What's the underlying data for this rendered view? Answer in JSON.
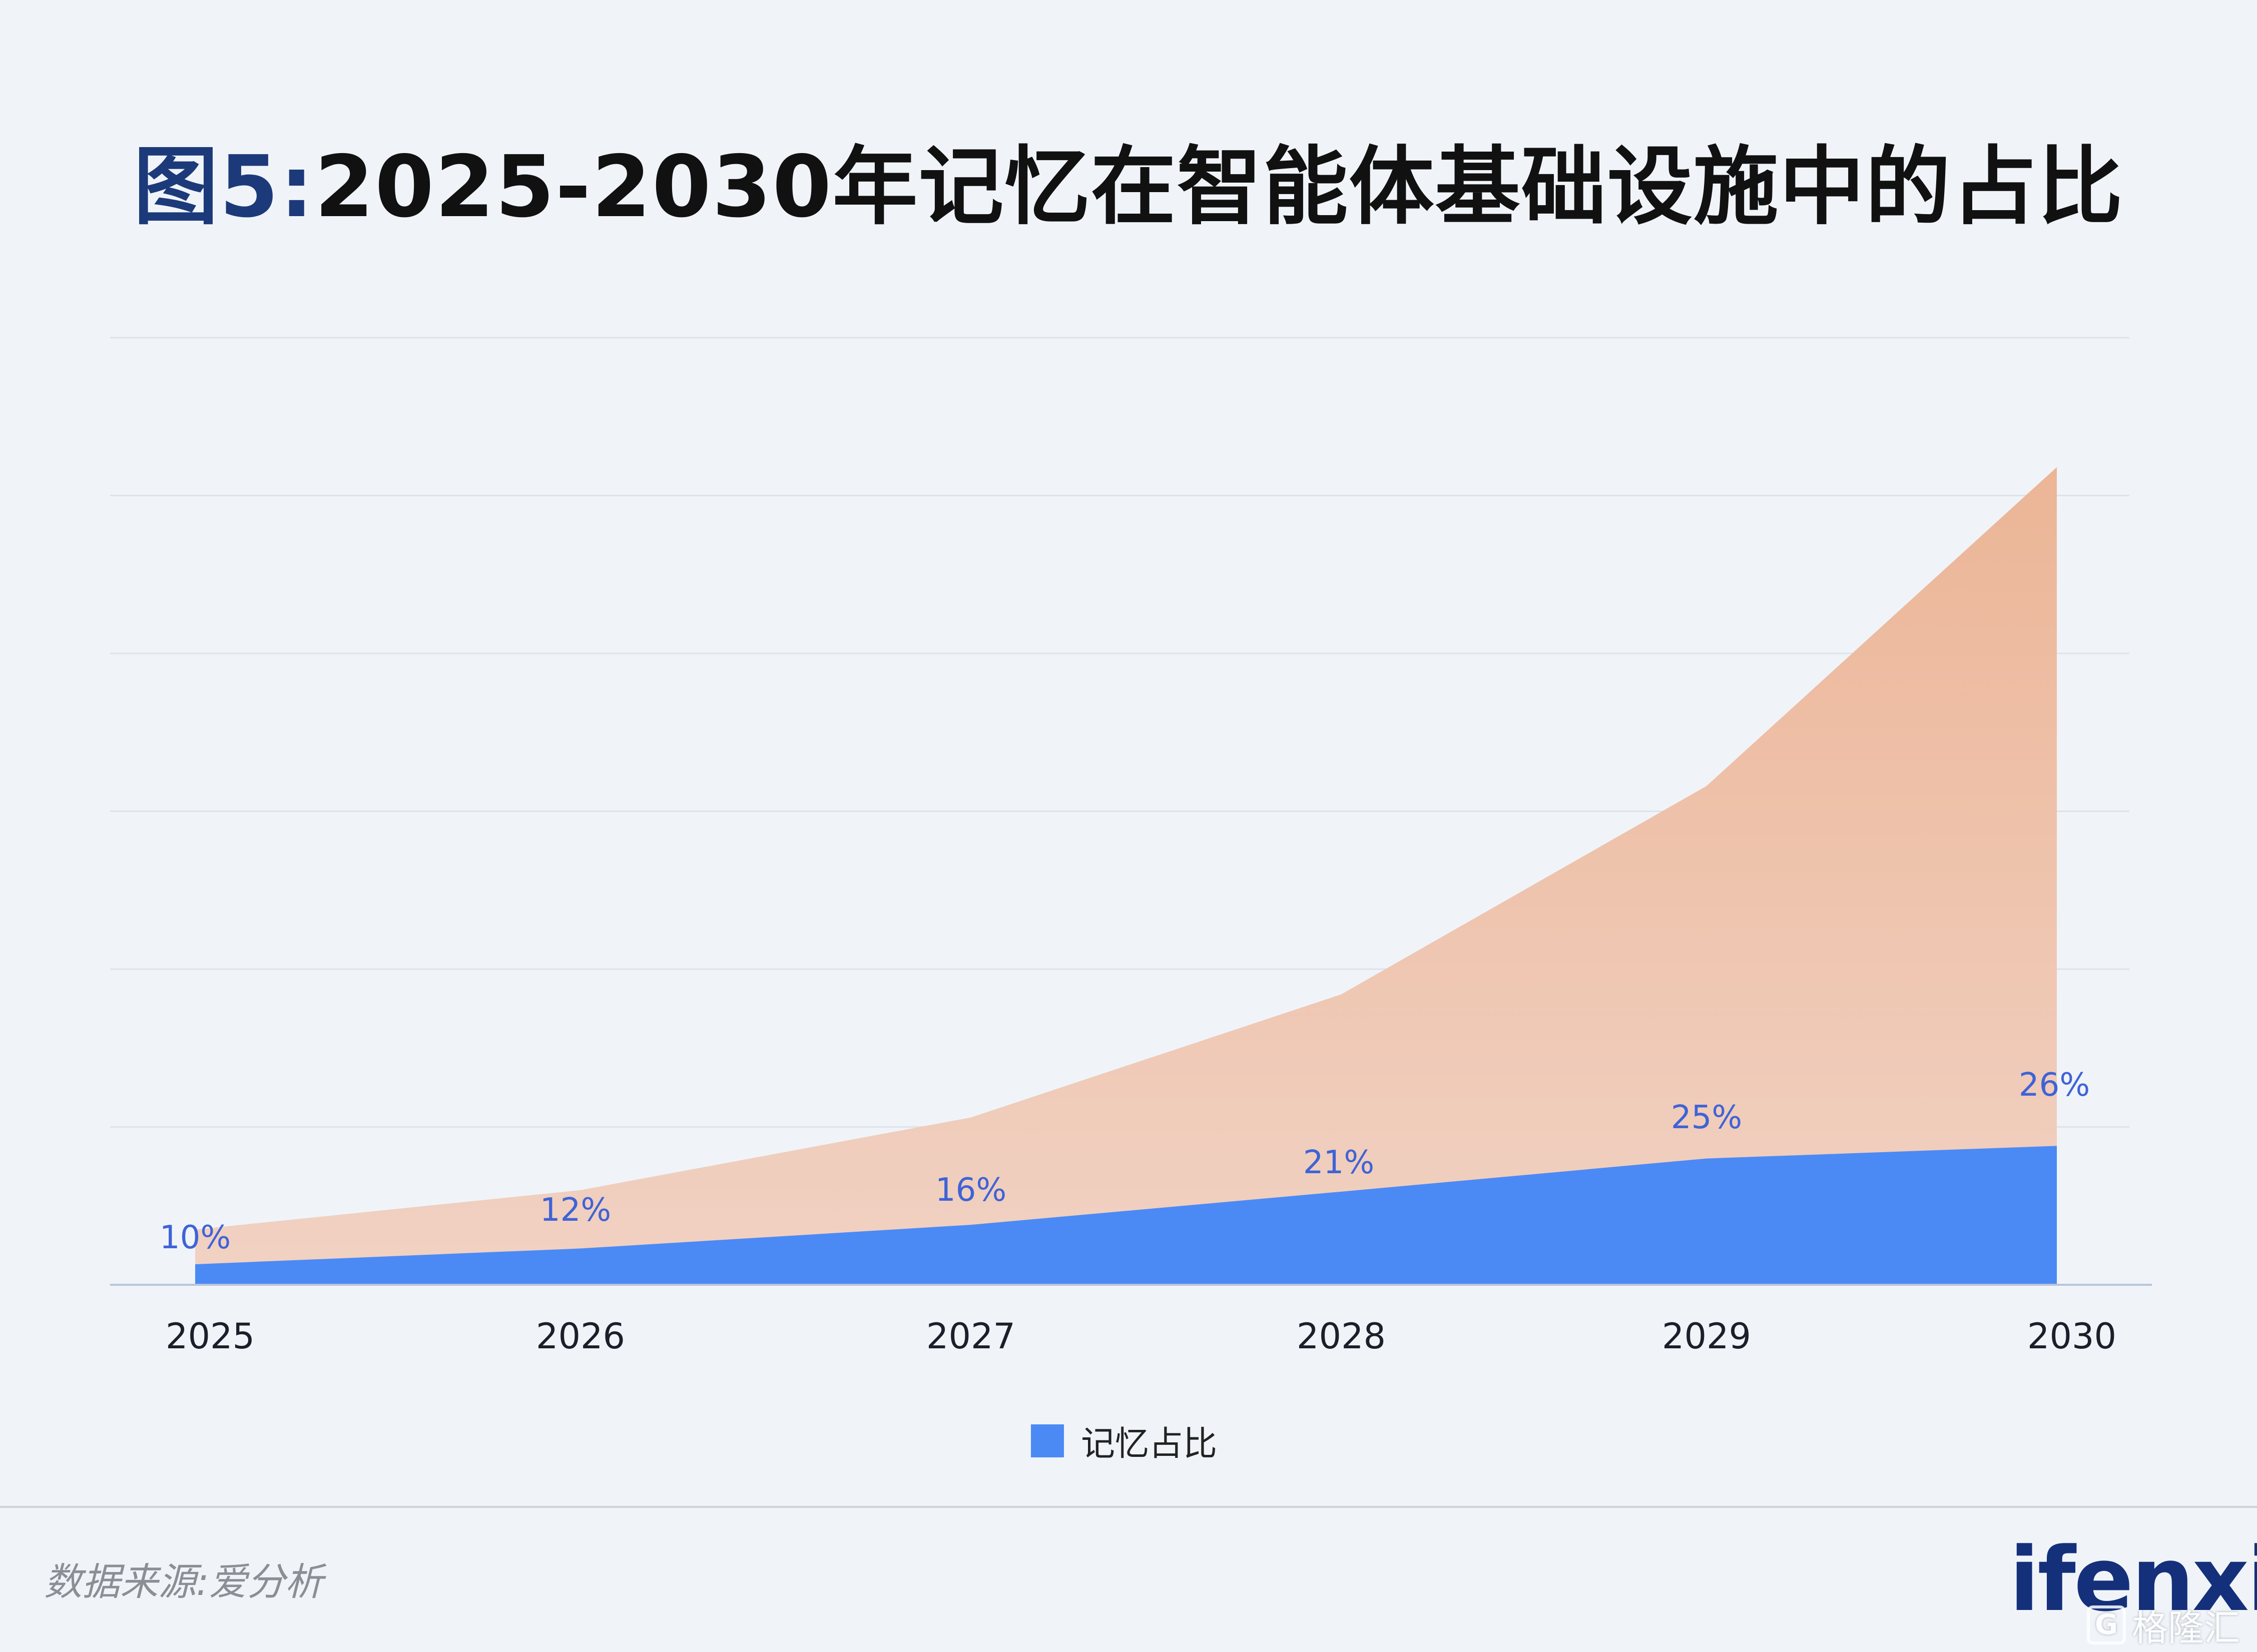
{
  "title": {
    "prefix": "图5:",
    "main": "2025-2030年记忆在智能体基础设施中的占比"
  },
  "chart_data": {
    "type": "area",
    "categories": [
      "2025",
      "2026",
      "2027",
      "2028",
      "2029",
      "2030"
    ],
    "series": [
      {
        "name": "",
        "color": "#ecb99d",
        "values": [
          0.35,
          0.6,
          1.06,
          1.84,
          3.16,
          5.18
        ]
      },
      {
        "name": "记忆占比",
        "color": "#4b8af5",
        "values": [
          0.13,
          0.23,
          0.38,
          0.59,
          0.8,
          0.88
        ],
        "labels": [
          "10%",
          "12%",
          "16%",
          "21%",
          "25%",
          "26%"
        ]
      }
    ],
    "ylim": [
      0,
      6
    ],
    "grid": true,
    "legend": "bottom-center"
  },
  "legend": {
    "label": "记忆占比"
  },
  "source": "数据来源:爱分析",
  "logo": "ifenxi",
  "watermark": {
    "icon": "G",
    "text": "格隆汇"
  }
}
